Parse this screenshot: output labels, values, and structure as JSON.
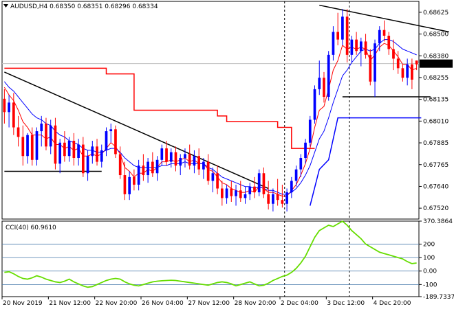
{
  "header": {
    "dropdown_icon": "triangle-down-icon",
    "text": "AUDUSD,H4  0.68350 0.68351 0.68296 0.68334"
  },
  "cci_label": "CCI(40) 60.9610",
  "chart_data": [
    {
      "type": "candlestick",
      "symbol": "AUDUSD",
      "timeframe": "H4",
      "ohlc_last": {
        "open": 0.6835,
        "high": 0.68351,
        "low": 0.68296,
        "close": 0.68334
      },
      "current_price": "0.68334",
      "ylim": [
        0.6752,
        0.6866
      ],
      "ytick_labels": [
        "0.68625",
        "0.68500",
        "0.68380",
        "0.68255",
        "0.68135",
        "0.68010",
        "0.67885",
        "0.67765",
        "0.67640",
        "0.67520"
      ],
      "xtick_labels": [
        "20 Nov 2019",
        "21 Nov 12:00",
        "22 Nov 20:00",
        "26 Nov 04:00",
        "27 Nov 12:00",
        "28 Nov 20:00",
        "2 Dec 04:00",
        "3 Dec 12:00",
        "4 Dec 20:00"
      ],
      "bar_count": 90,
      "session_breaks": [
        61,
        75
      ],
      "candles": [
        [
          0.6815,
          0.682,
          0.6802,
          0.6808
        ],
        [
          0.6808,
          0.6817,
          0.68,
          0.6813
        ],
        [
          0.6813,
          0.6818,
          0.6796,
          0.68
        ],
        [
          0.68,
          0.6806,
          0.679,
          0.6795
        ],
        [
          0.6795,
          0.6801,
          0.678,
          0.6785
        ],
        [
          0.6785,
          0.6797,
          0.6781,
          0.6796
        ],
        [
          0.6796,
          0.68,
          0.678,
          0.6783
        ],
        [
          0.6783,
          0.68,
          0.678,
          0.6798
        ],
        [
          0.6798,
          0.6806,
          0.679,
          0.6802
        ],
        [
          0.6802,
          0.6805,
          0.6788,
          0.679
        ],
        [
          0.679,
          0.6804,
          0.6786,
          0.6801
        ],
        [
          0.6801,
          0.6805,
          0.6778,
          0.6781
        ],
        [
          0.6781,
          0.6794,
          0.6776,
          0.6792
        ],
        [
          0.6792,
          0.6798,
          0.6782,
          0.6785
        ],
        [
          0.6785,
          0.6795,
          0.6782,
          0.6793
        ],
        [
          0.6793,
          0.6797,
          0.678,
          0.6784
        ],
        [
          0.6784,
          0.6794,
          0.678,
          0.6791
        ],
        [
          0.6791,
          0.6795,
          0.6774,
          0.6776
        ],
        [
          0.6776,
          0.6788,
          0.6772,
          0.6785
        ],
        [
          0.6785,
          0.6793,
          0.6781,
          0.679
        ],
        [
          0.679,
          0.6794,
          0.678,
          0.6782
        ],
        [
          0.6782,
          0.6791,
          0.6779,
          0.6788
        ],
        [
          0.6788,
          0.68,
          0.6785,
          0.6798
        ],
        [
          0.6798,
          0.6802,
          0.6792,
          0.6799
        ],
        [
          0.6799,
          0.6801,
          0.6784,
          0.6786
        ],
        [
          0.6786,
          0.679,
          0.6773,
          0.6775
        ],
        [
          0.6775,
          0.6782,
          0.6762,
          0.6765
        ],
        [
          0.6765,
          0.6777,
          0.6762,
          0.6774
        ],
        [
          0.6774,
          0.6778,
          0.6767,
          0.677
        ],
        [
          0.677,
          0.6783,
          0.6767,
          0.678
        ],
        [
          0.678,
          0.6786,
          0.6772,
          0.6775
        ],
        [
          0.6775,
          0.6784,
          0.6771,
          0.6782
        ],
        [
          0.6782,
          0.6787,
          0.6774,
          0.6776
        ],
        [
          0.6776,
          0.6785,
          0.6772,
          0.6783
        ],
        [
          0.6783,
          0.6791,
          0.678,
          0.6789
        ],
        [
          0.6789,
          0.6793,
          0.678,
          0.6782
        ],
        [
          0.6782,
          0.6789,
          0.6779,
          0.6787
        ],
        [
          0.6787,
          0.679,
          0.6777,
          0.678
        ],
        [
          0.678,
          0.6786,
          0.6775,
          0.6784
        ],
        [
          0.6784,
          0.6789,
          0.6779,
          0.6786
        ],
        [
          0.6786,
          0.6791,
          0.6778,
          0.678
        ],
        [
          0.678,
          0.6788,
          0.6776,
          0.6785
        ],
        [
          0.6785,
          0.6789,
          0.6775,
          0.6778
        ],
        [
          0.6778,
          0.6784,
          0.6773,
          0.6782
        ],
        [
          0.6782,
          0.6786,
          0.677,
          0.6772
        ],
        [
          0.6772,
          0.6779,
          0.6766,
          0.6776
        ],
        [
          0.6776,
          0.678,
          0.6765,
          0.6768
        ],
        [
          0.6768,
          0.6772,
          0.6759,
          0.6763
        ],
        [
          0.6763,
          0.677,
          0.676,
          0.6768
        ],
        [
          0.6768,
          0.6772,
          0.6761,
          0.6764
        ],
        [
          0.6764,
          0.677,
          0.6759,
          0.6767
        ],
        [
          0.6767,
          0.6772,
          0.6761,
          0.6763
        ],
        [
          0.6763,
          0.6769,
          0.676,
          0.6765
        ],
        [
          0.6765,
          0.6771,
          0.6762,
          0.6769
        ],
        [
          0.6769,
          0.6774,
          0.6763,
          0.6766
        ],
        [
          0.6766,
          0.6778,
          0.6764,
          0.6776
        ],
        [
          0.6776,
          0.6779,
          0.6763,
          0.6765
        ],
        [
          0.6765,
          0.6772,
          0.6757,
          0.676
        ],
        [
          0.676,
          0.6768,
          0.6756,
          0.6765
        ],
        [
          0.6765,
          0.6773,
          0.6759,
          0.6762
        ],
        [
          0.6762,
          0.677,
          0.6758,
          0.676
        ],
        [
          0.676,
          0.6768,
          0.6756,
          0.6766
        ],
        [
          0.6766,
          0.6774,
          0.6763,
          0.6772
        ],
        [
          0.6772,
          0.678,
          0.6769,
          0.6778
        ],
        [
          0.6778,
          0.6786,
          0.6774,
          0.6784
        ],
        [
          0.6784,
          0.6794,
          0.6781,
          0.6792
        ],
        [
          0.6792,
          0.6806,
          0.679,
          0.6804
        ],
        [
          0.6804,
          0.6822,
          0.6802,
          0.682
        ],
        [
          0.682,
          0.6835,
          0.6817,
          0.6826
        ],
        [
          0.6826,
          0.6829,
          0.6813,
          0.6816
        ],
        [
          0.6816,
          0.684,
          0.6814,
          0.6838
        ],
        [
          0.6838,
          0.6853,
          0.6835,
          0.685
        ],
        [
          0.685,
          0.686,
          0.6843,
          0.6846
        ],
        [
          0.6846,
          0.6862,
          0.6843,
          0.6858
        ],
        [
          0.6858,
          0.6862,
          0.6834,
          0.6838
        ],
        [
          0.6838,
          0.6848,
          0.6834,
          0.6846
        ],
        [
          0.6846,
          0.685,
          0.6838,
          0.684
        ],
        [
          0.684,
          0.6847,
          0.6832,
          0.6845
        ],
        [
          0.6845,
          0.6849,
          0.6836,
          0.6838
        ],
        [
          0.6838,
          0.6841,
          0.6822,
          0.6824
        ],
        [
          0.6824,
          0.6846,
          0.6816,
          0.6844
        ],
        [
          0.6844,
          0.6853,
          0.684,
          0.6851
        ],
        [
          0.6851,
          0.6856,
          0.6845,
          0.6848
        ],
        [
          0.6848,
          0.685,
          0.6838,
          0.6841
        ],
        [
          0.6841,
          0.6846,
          0.683,
          0.6836
        ],
        [
          0.6836,
          0.684,
          0.6828,
          0.6831
        ],
        [
          0.6831,
          0.6833,
          0.6824,
          0.6826
        ],
        [
          0.6826,
          0.6836,
          0.6822,
          0.6833
        ],
        [
          0.6833,
          0.6836,
          0.682,
          0.6825
        ],
        [
          0.6835,
          0.6835,
          0.683,
          0.6833
        ]
      ],
      "moving_averages": [
        {
          "color": "#ff0000",
          "values": [
            0.6821,
            0.6817,
            0.6814,
            0.6809,
            0.6803,
            0.68,
            0.6796,
            0.6796,
            0.6796,
            0.6794,
            0.6795,
            0.6791,
            0.6791,
            0.6789,
            0.679,
            0.6788,
            0.6789,
            0.6785,
            0.6785,
            0.6786,
            0.6785,
            0.6786,
            0.6789,
            0.6792,
            0.679,
            0.6786,
            0.6779,
            0.6777,
            0.6774,
            0.6776,
            0.6776,
            0.6778,
            0.6777,
            0.6779,
            0.6782,
            0.6782,
            0.6783,
            0.6782,
            0.6783,
            0.6784,
            0.6782,
            0.6783,
            0.6781,
            0.6781,
            0.6778,
            0.6777,
            0.6774,
            0.6771,
            0.677,
            0.6768,
            0.6767,
            0.6766,
            0.6766,
            0.6767,
            0.6766,
            0.6769,
            0.6768,
            0.6766,
            0.6766,
            0.6765,
            0.6764,
            0.6764,
            0.6767,
            0.677,
            0.6775,
            0.6781,
            0.6789,
            0.68,
            0.6809,
            0.6811,
            0.682,
            0.683,
            0.6835,
            0.6843,
            0.6841,
            0.6842,
            0.6841,
            0.6842,
            0.6841,
            0.6835,
            0.6838,
            0.6842,
            0.6844,
            0.6843,
            0.684,
            0.6837,
            0.6833,
            0.6833,
            0.683,
            0.6831
          ]
        },
        {
          "color": "#0000ff",
          "values": [
            0.6824,
            0.6821,
            0.6819,
            0.6816,
            0.6813,
            0.681,
            0.6807,
            0.6805,
            0.6804,
            0.6802,
            0.6801,
            0.6798,
            0.6796,
            0.6795,
            0.6793,
            0.6792,
            0.6791,
            0.6789,
            0.6788,
            0.6788,
            0.6787,
            0.6787,
            0.6788,
            0.6789,
            0.6789,
            0.6787,
            0.6784,
            0.6782,
            0.678,
            0.6779,
            0.6779,
            0.6779,
            0.6779,
            0.6779,
            0.678,
            0.678,
            0.6781,
            0.6781,
            0.6781,
            0.6782,
            0.6781,
            0.6781,
            0.6781,
            0.6781,
            0.6779,
            0.6778,
            0.6776,
            0.6774,
            0.6773,
            0.6772,
            0.6771,
            0.677,
            0.6769,
            0.6769,
            0.6768,
            0.6769,
            0.6768,
            0.6767,
            0.6767,
            0.6766,
            0.6765,
            0.6765,
            0.6766,
            0.6768,
            0.6771,
            0.6775,
            0.678,
            0.6787,
            0.6794,
            0.6798,
            0.6805,
            0.6813,
            0.682,
            0.6827,
            0.683,
            0.6834,
            0.6837,
            0.684,
            0.6841,
            0.684,
            0.6841,
            0.6844,
            0.6846,
            0.6846,
            0.6845,
            0.6843,
            0.6841,
            0.684,
            0.6839,
            0.6838
          ]
        }
      ],
      "step_lines": [
        {
          "color": "#ff0000",
          "points": [
            [
              0,
              0.6831
            ],
            [
              22,
              0.6831
            ],
            [
              22,
              0.6828
            ],
            [
              28,
              0.6828
            ],
            [
              28,
              0.6809
            ],
            [
              46,
              0.6809
            ],
            [
              46,
              0.6806
            ],
            [
              48,
              0.6806
            ],
            [
              48,
              0.6803
            ],
            [
              59,
              0.6803
            ],
            [
              59,
              0.68
            ],
            [
              62,
              0.68
            ],
            [
              62,
              0.6789
            ],
            [
              67,
              0.6789
            ]
          ]
        },
        {
          "color": "#0000ff",
          "points": [
            [
              66,
              0.6759
            ],
            [
              68,
              0.6778
            ],
            [
              70,
              0.6783
            ],
            [
              72,
              0.6805
            ],
            [
              90,
              0.6805
            ]
          ]
        }
      ],
      "trend_lines": [
        {
          "color": "#000000",
          "points": [
            [
              0,
              0.6829
            ],
            [
              57,
              0.6768
            ]
          ]
        },
        {
          "color": "#000000",
          "points": [
            [
              68,
              0.6864
            ],
            [
              96,
              0.685
            ]
          ]
        }
      ],
      "horizontal_lines": [
        {
          "color": "#000000",
          "from": 0,
          "to": 21,
          "y": 0.6777
        },
        {
          "color": "#000000",
          "from": 73,
          "to": 92,
          "y": 0.6816
        }
      ],
      "colors": {
        "bull": "#0000ff",
        "bear": "#ff0000",
        "price_tag_bg": "#000000",
        "price_line": "#c0c0c0"
      }
    },
    {
      "type": "line",
      "indicator": "CCI",
      "period": 40,
      "last_value": 60.961,
      "ylim": [
        -189.7337,
        370.3864
      ],
      "ytick_labels": [
        "370.3864",
        "200",
        "100",
        "0.00",
        "-100",
        "-189.7337"
      ],
      "levels": [
        200,
        100,
        0,
        -100
      ],
      "color": "#66dd00",
      "values": [
        -10,
        -5,
        -20,
        -40,
        -55,
        -60,
        -50,
        -35,
        -45,
        -60,
        -70,
        -80,
        -85,
        -75,
        -60,
        -80,
        -95,
        -110,
        -120,
        -115,
        -100,
        -85,
        -70,
        -60,
        -55,
        -60,
        -80,
        -95,
        -105,
        -110,
        -100,
        -90,
        -80,
        -75,
        -72,
        -70,
        -68,
        -70,
        -75,
        -80,
        -85,
        -90,
        -95,
        -100,
        -105,
        -95,
        -85,
        -80,
        -85,
        -95,
        -110,
        -100,
        -90,
        -80,
        -95,
        -110,
        -105,
        -90,
        -70,
        -55,
        -40,
        -30,
        -10,
        20,
        60,
        110,
        180,
        250,
        300,
        320,
        340,
        330,
        350,
        370,
        340,
        300,
        270,
        240,
        200,
        180,
        160,
        140,
        130,
        120,
        110,
        100,
        90,
        70,
        55,
        60
      ]
    }
  ]
}
